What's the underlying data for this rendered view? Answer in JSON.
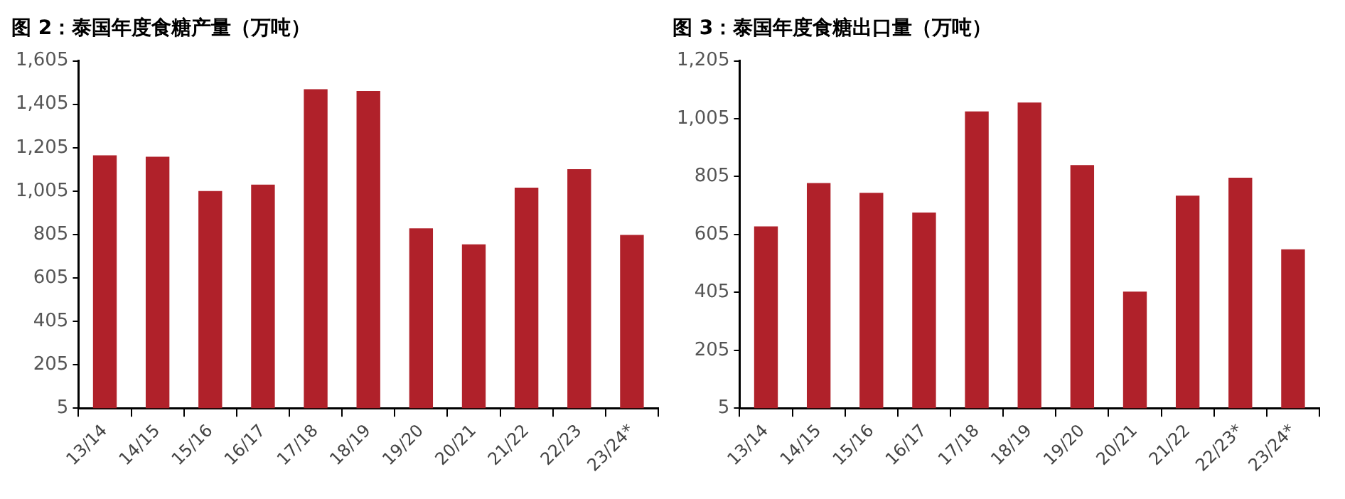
{
  "chart_data": [
    {
      "type": "bar",
      "title": "图 2：泰国年度食糖产量（万吨）",
      "categories": [
        "13/14",
        "14/15",
        "15/16",
        "16/17",
        "17/18",
        "18/19",
        "19/20",
        "20/21",
        "21/22",
        "22/23",
        "23/24*"
      ],
      "values": [
        1170,
        1163,
        1005,
        1035,
        1474,
        1466,
        833,
        760,
        1021,
        1106,
        803
      ],
      "color": "#b0212a",
      "ylim": [
        5,
        1605
      ],
      "yticks": [
        {
          "value": 5,
          "label": "5"
        },
        {
          "value": 205,
          "label": "205"
        },
        {
          "value": 405,
          "label": "405"
        },
        {
          "value": 605,
          "label": "605"
        },
        {
          "value": 805,
          "label": "805"
        },
        {
          "value": 1005,
          "label": "1,005"
        },
        {
          "value": 1205,
          "label": "1,205"
        },
        {
          "value": 1405,
          "label": "1,405"
        },
        {
          "value": 1605,
          "label": "1,605"
        }
      ],
      "grid": false,
      "legend": false
    },
    {
      "type": "bar",
      "title": "图 3：泰国年度食糖出口量（万吨）",
      "categories": [
        "13/14",
        "14/15",
        "15/16",
        "16/17",
        "17/18",
        "18/19",
        "19/20",
        "20/21",
        "21/22",
        "22/23*",
        "23/24*"
      ],
      "values": [
        633,
        783,
        749,
        681,
        1030,
        1061,
        845,
        408,
        739,
        801,
        554
      ],
      "color": "#b0212a",
      "ylim": [
        5,
        1205
      ],
      "yticks": [
        {
          "value": 5,
          "label": "5"
        },
        {
          "value": 205,
          "label": "205"
        },
        {
          "value": 405,
          "label": "405"
        },
        {
          "value": 605,
          "label": "605"
        },
        {
          "value": 805,
          "label": "805"
        },
        {
          "value": 1005,
          "label": "1,005"
        },
        {
          "value": 1205,
          "label": "1,205"
        }
      ],
      "grid": false,
      "legend": false
    }
  ]
}
